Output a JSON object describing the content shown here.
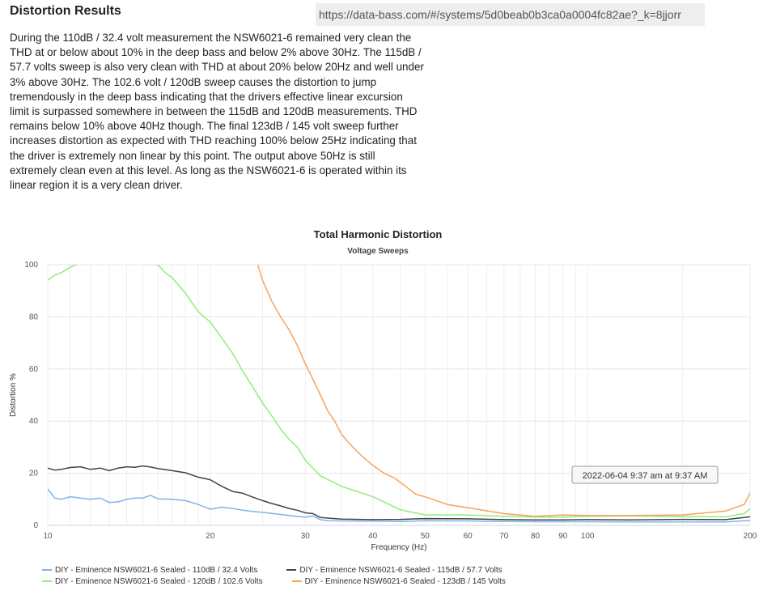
{
  "header": {
    "title": "Distortion Results",
    "url": "https://data-bass.com/#/systems/5d0beab0b3ca0a0004fc82ae?_k=8jjorr"
  },
  "description": "During the 110dB / 32.4 volt measurement the NSW6021-6 remained very clean the THD at or below about 10% in the deep bass and below 2% above 30Hz. The 115dB / 57.7 volts sweep is also very clean with THD at about 20% below 20Hz and well under 3% above 30Hz. The 102.6 volt / 120dB sweep causes the distortion to jump tremendously in the deep bass indicating that the drivers effective linear excursion limit is surpassed somewhere in between the 115dB and 120dB measurements. THD remains below 10% above 40Hz though. The final 123dB / 145 volt sweep further increases distortion as expected with THD reaching 100% below 25Hz indicating that the driver is extremely non linear by this point. The output above 50Hz is still extremely clean even at this level. As long as the NSW6021-6 is operated within its linear region it is a very clean driver.",
  "chart_data": {
    "type": "line",
    "title": "Total Harmonic Distortion",
    "subtitle": "Voltage Sweeps",
    "xlabel": "Frequency (Hz)",
    "ylabel": "Distortion %",
    "xscale": "log",
    "xlim": [
      10,
      200
    ],
    "ylim": [
      0,
      100
    ],
    "xticks": [
      10,
      20,
      30,
      40,
      50,
      60,
      70,
      80,
      90,
      100,
      200
    ],
    "yticks": [
      0,
      20,
      40,
      60,
      80,
      100
    ],
    "grid": true,
    "legend_position": "bottom",
    "tooltip": "2022-06-04 9:37 am at 9:37 AM",
    "series": [
      {
        "name": "DIY - Eminence NSW6021-6 Sealed - 110dB / 32.4 Volts",
        "color": "#7cb5ec",
        "x": [
          10,
          10.3,
          10.6,
          11,
          11.5,
          12,
          12.5,
          13,
          13.5,
          14,
          14.5,
          15,
          15.5,
          16,
          17,
          18,
          19,
          20,
          21,
          22,
          23,
          24,
          25,
          26,
          27,
          28,
          29,
          30,
          31,
          32,
          33,
          35,
          40,
          45,
          50,
          60,
          70,
          80,
          90,
          100,
          120,
          150,
          180,
          200
        ],
        "y": [
          14,
          10.5,
          10,
          11,
          10.5,
          10,
          10.5,
          8.8,
          9,
          10,
          10.5,
          10.5,
          11.5,
          10.2,
          10,
          9.5,
          8,
          6.2,
          7,
          6.5,
          5.8,
          5.3,
          5,
          4.6,
          4.2,
          3.8,
          3.4,
          3.2,
          3.6,
          2.2,
          1.8,
          1.7,
          1.6,
          1.5,
          1.8,
          1.7,
          1.5,
          1.4,
          1.4,
          1.4,
          1.3,
          1.3,
          1.3,
          1.9
        ]
      },
      {
        "name": "DIY - Eminence NSW6021-6 Sealed - 115dB / 57.7 Volts",
        "color": "#434348",
        "x": [
          10,
          10.3,
          10.6,
          11,
          11.5,
          12,
          12.5,
          13,
          13.5,
          14,
          14.5,
          15,
          15.5,
          16,
          17,
          18,
          19,
          20,
          21,
          22,
          23,
          24,
          25,
          26,
          27,
          28,
          29,
          30,
          31,
          32,
          33,
          35,
          40,
          45,
          50,
          60,
          70,
          80,
          90,
          100,
          120,
          150,
          180,
          200
        ],
        "y": [
          22,
          21.2,
          21.5,
          22.2,
          22.5,
          21.5,
          22,
          21,
          22,
          22.5,
          22.3,
          22.8,
          22.4,
          21.8,
          21,
          20.2,
          18.5,
          17.5,
          15,
          13,
          12.3,
          10.8,
          9.5,
          8.4,
          7.5,
          6.5,
          5.8,
          4.8,
          4.5,
          3,
          2.8,
          2.4,
          2.2,
          2.3,
          2.6,
          2.5,
          2.2,
          2.1,
          2.1,
          2.2,
          2.1,
          2.3,
          2.2,
          3.3
        ]
      },
      {
        "name": "DIY - Eminence NSW6021-6 Sealed - 120dB / 102.6 Volts",
        "color": "#90ed7d",
        "x": [
          10,
          10.3,
          10.6,
          11,
          11.3,
          11.5,
          16,
          16.5,
          17,
          18,
          19,
          20,
          21,
          22,
          23,
          24,
          25,
          26,
          27,
          28,
          29,
          30,
          32,
          35,
          40,
          45,
          50,
          60,
          70,
          80,
          90,
          100,
          120,
          150,
          180,
          195,
          200
        ],
        "y": [
          94,
          96,
          97,
          99,
          100,
          102,
          100,
          97,
          95,
          89,
          82,
          78,
          72,
          66,
          59,
          53,
          47,
          42,
          37,
          33,
          30,
          25,
          19,
          15,
          11,
          6,
          4,
          4,
          3.5,
          3.2,
          3.2,
          3.5,
          3.6,
          3.4,
          3.3,
          4.5,
          6.5
        ]
      },
      {
        "name": "DIY - Eminence NSW6021-6 Sealed - 123dB / 145 Volts",
        "color": "#f7a35c",
        "x": [
          24,
          24.5,
          25,
          26,
          27,
          28,
          29,
          30,
          31,
          32,
          33,
          34,
          35,
          36,
          38,
          40,
          42,
          44,
          46,
          48,
          50,
          55,
          60,
          70,
          80,
          90,
          100,
          120,
          150,
          180,
          195,
          200
        ],
        "y": [
          105,
          100,
          94,
          86,
          80,
          75,
          69,
          62,
          56,
          50,
          44,
          40,
          35,
          32,
          27,
          23,
          20,
          18,
          15,
          12,
          11,
          8,
          6.8,
          4.5,
          3.5,
          4,
          3.8,
          3.8,
          4,
          5.5,
          8,
          12.5
        ]
      }
    ]
  }
}
